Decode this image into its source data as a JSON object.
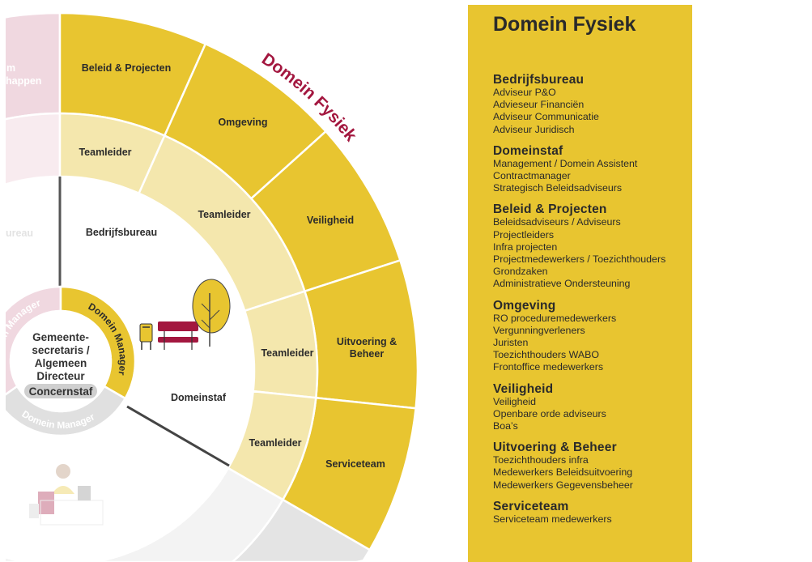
{
  "colors": {
    "domain_yellow": "#e8c530",
    "teamleader_light": "#f4e7ad",
    "title_red": "#a3173f",
    "pink_outer": "#f0d8e0",
    "pink_inner": "#f8ebef",
    "gray_outer": "#e4e4e4",
    "gray_inner": "#f3f3f3"
  },
  "diagram": {
    "domain_title": "Domein Fysiek",
    "outer_ring": [
      "Beleid & Projecten",
      "Omgeving",
      "Veiligheid",
      "Uitvoering &",
      "Beheer",
      "Serviceteam"
    ],
    "teamleaders": [
      "Teamleider",
      "Teamleider",
      "Teamleider",
      "Teamleider"
    ],
    "inner": {
      "bedrijfsbureau": "Bedrijfsbureau",
      "domeinstaf": "Domeinstaf"
    },
    "center": {
      "lines": [
        "Gemeente-",
        "secretaris /",
        "Algemeen",
        "Directeur"
      ],
      "concernstaf": "Concernstaf"
    },
    "domain_manager": "Domein Manager",
    "faded": {
      "pink_line1": "m",
      "pink_line2": "happen",
      "left_inner": "ureau"
    }
  },
  "panel": {
    "title": "Domein Fysiek",
    "sections": [
      {
        "heading": "Bedrijfsbureau",
        "items": [
          "Adviseur P&O",
          "Advieseur Financiën",
          "Adviseur Communicatie",
          "Adviseur Juridisch"
        ]
      },
      {
        "heading": "Domeinstaf",
        "items": [
          "Management / Domein Assistent",
          "Contractmanager",
          "Strategisch Beleidsadviseurs"
        ]
      },
      {
        "heading": "Beleid & Projecten",
        "items": [
          "Beleidsadviseurs / Adviseurs",
          "Projectleiders",
          "Infra projecten",
          "Projectmedewerkers / Toezichthouders",
          "Grondzaken",
          "Administratieve Ondersteuning"
        ]
      },
      {
        "heading": "Omgeving",
        "items": [
          "RO proceduremedewerkers",
          "Vergunningverleners",
          "Juristen",
          "Toezichthouders WABO",
          "Frontoffice medewerkers"
        ]
      },
      {
        "heading": "Veiligheid",
        "items": [
          "Veiligheid",
          "Openbare orde adviseurs",
          "Boa’s"
        ]
      },
      {
        "heading": "Uitvoering & Beheer",
        "items": [
          "Toezichthouders infra",
          "Medewerkers Beleidsuitvoering",
          "Medewerkers Gegevensbeheer"
        ]
      },
      {
        "heading": "Serviceteam",
        "items": [
          "Serviceteam medewerkers"
        ]
      }
    ]
  }
}
